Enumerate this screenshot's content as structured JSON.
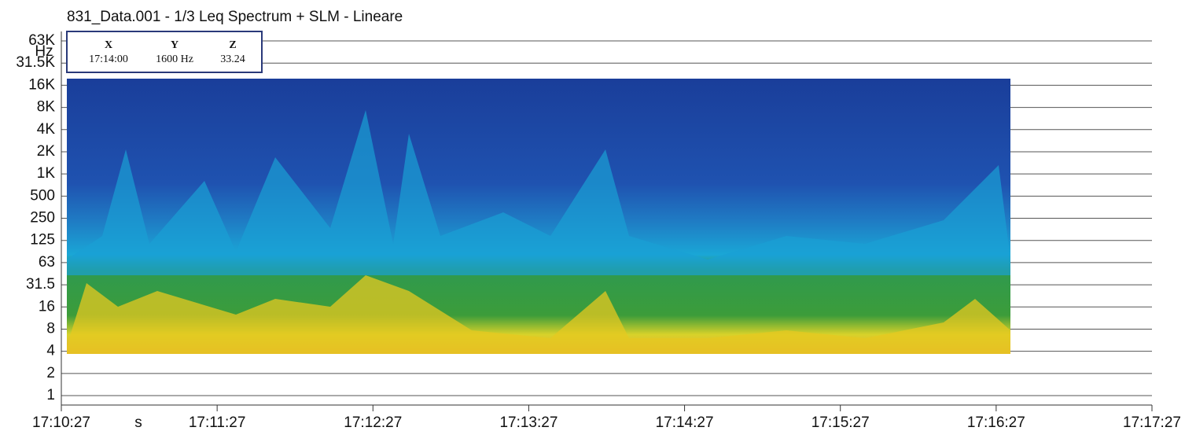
{
  "chart_data": {
    "type": "spectrogram",
    "title": "831_Data.001 - 1/3 Leq Spectrum + SLM - Lineare",
    "y_label": "Hz",
    "x_label": "s",
    "y_categories": [
      "63K",
      "31.5K",
      "16K",
      "8K",
      "4K",
      "2K",
      "1K",
      "500",
      "250",
      "125",
      "63",
      "31.5",
      "16",
      "8",
      "4",
      "2",
      "1"
    ],
    "x_categories": [
      "17:10:27",
      "17:11:27",
      "17:12:27",
      "17:13:27",
      "17:14:27",
      "17:15:27",
      "17:16:27",
      "17:17:27"
    ],
    "cursor": {
      "headers": [
        "X",
        "Y",
        "Z"
      ],
      "values": [
        "17:14:00",
        "1600 Hz",
        "33.24"
      ]
    }
  }
}
